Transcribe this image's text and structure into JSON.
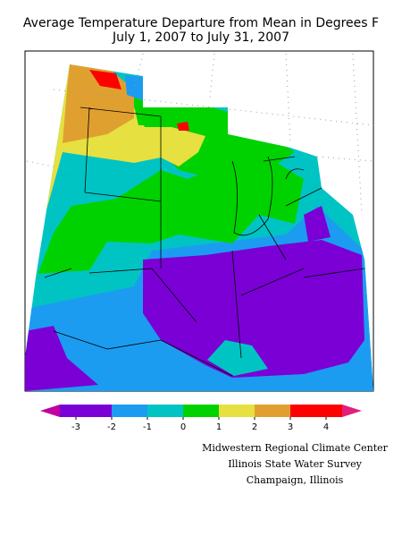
{
  "title": "Average Temperature Departure from Mean in Degrees F",
  "subtitle": "July 1, 2007 to July 31, 2007",
  "legend": {
    "ticks": [
      -3,
      -2,
      -1,
      0,
      1,
      2,
      3,
      4
    ],
    "colors": [
      "#7a00d6",
      "#1c9cf0",
      "#00c4c4",
      "#00d200",
      "#e6e040",
      "#e0a030",
      "#ff0000"
    ],
    "below_color": "#c000a0",
    "above_color": "#e0207a"
  },
  "credits": [
    "Midwestern Regional Climate Center",
    "Illinois State Water Survey",
    "Champaign, Illinois"
  ]
}
